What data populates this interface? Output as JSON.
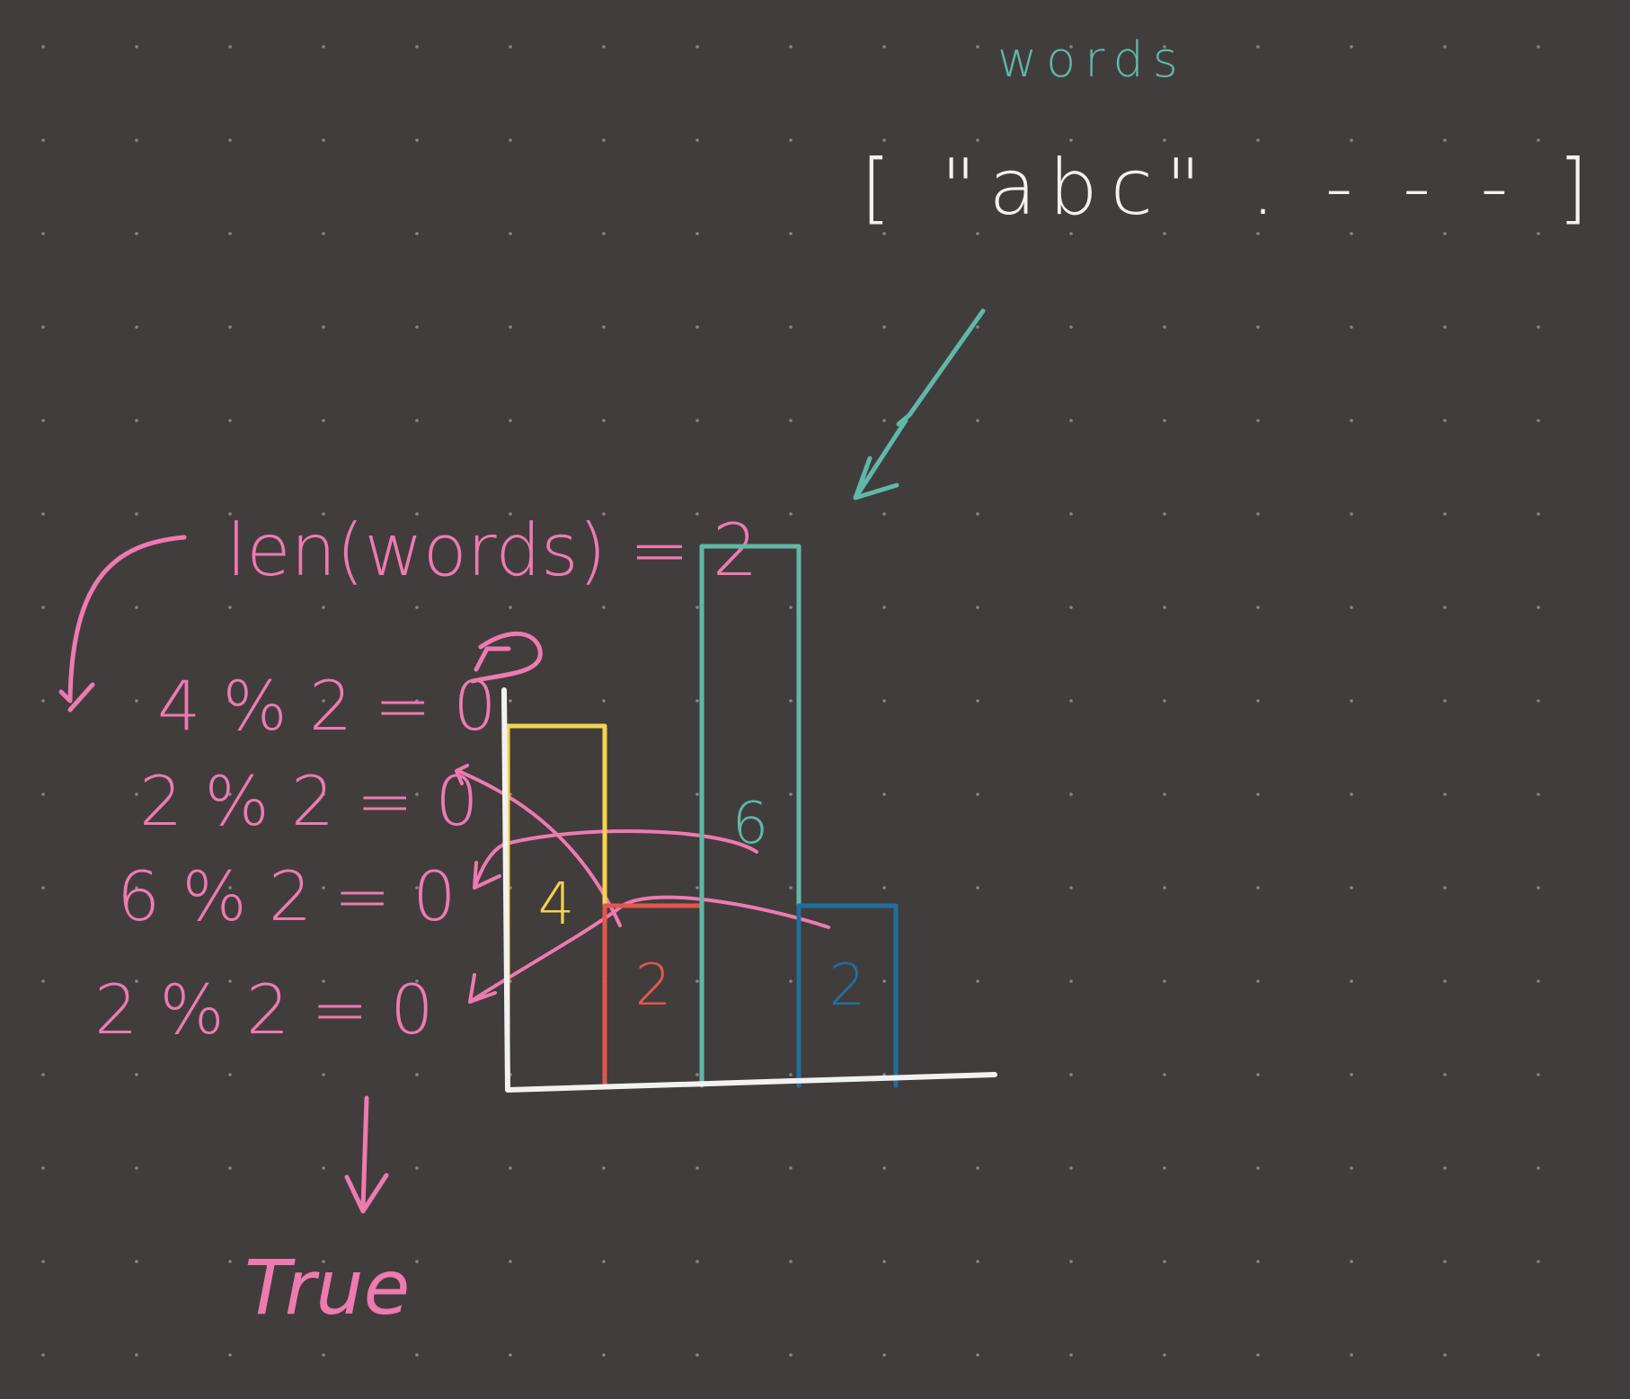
{
  "colors": {
    "background": "#413d3c",
    "dot_grid": "#8a8583",
    "white_ink": "#f2f2f2",
    "teal_ink": "#5fb8a8",
    "pink_ink": "#ee7ab0",
    "yellow_ink": "#f6d24e",
    "red_ink": "#e2574c",
    "blue_ink": "#1f6f9c"
  },
  "header": {
    "label": "words",
    "array_text": "[ \"abc\"  . - - - ]"
  },
  "formula": {
    "len_expression": "len(words) = 2"
  },
  "mod_rows": [
    {
      "text": "4 % 2 = 0"
    },
    {
      "text": "2 % 2 = 0"
    },
    {
      "text": "6 % 2 = 0"
    },
    {
      "text": "2 % 2 = 0"
    }
  ],
  "result": {
    "text": "True"
  },
  "chart_data": {
    "type": "bar",
    "values": [
      4,
      2,
      6,
      2
    ],
    "value_labels": [
      "4",
      "2",
      "6",
      "2"
    ],
    "colors": [
      "#f6d24e",
      "#e2574c",
      "#5fb8a8",
      "#1f6f9c"
    ],
    "grid": false
  }
}
